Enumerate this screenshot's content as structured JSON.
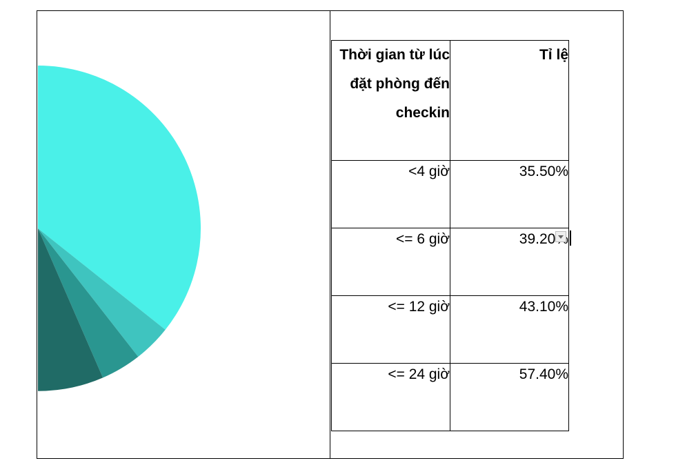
{
  "table": {
    "header": [
      "Thời gian từ lúc đặt phòng đến checkin",
      "Tỉ lệ"
    ],
    "rows": [
      [
        "<4 giờ",
        "35.50%"
      ],
      [
        "<= 6 giờ",
        "39.20%"
      ],
      [
        "<= 12 giờ",
        "43.10%"
      ],
      [
        "<= 24 giờ",
        "57.40%"
      ]
    ]
  }
}
